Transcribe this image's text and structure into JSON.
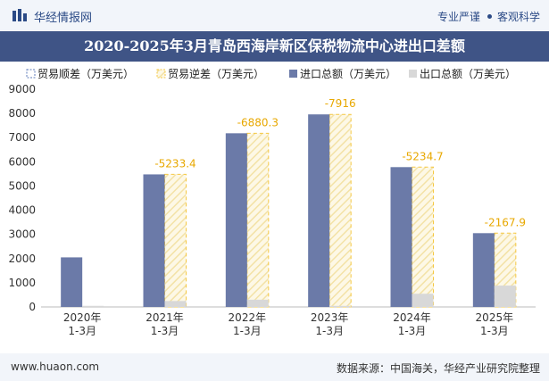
{
  "header": {
    "brand": "华经情报网",
    "slogan_left": "专业严谨",
    "slogan_right": "客观科学",
    "logo_icon": "bar-chart-logo-icon"
  },
  "title": "2020-2025年3月青岛西海岸新区保税物流中心进出口差额",
  "footer": {
    "site": "www.huaon.com",
    "source": "数据来源：中国海关，华经产业研究院整理"
  },
  "colors": {
    "import": "#6b7aa8",
    "export": "#d8d8d8",
    "deficit": "#f5c842",
    "header_bg": "#3f5486"
  },
  "chart_data": {
    "type": "bar",
    "title": "2020-2025年3月青岛西海岸新区保税物流中心进出口差额",
    "categories": [
      "2020年\n1-3月",
      "2021年\n1-3月",
      "2022年\n1-3月",
      "2023年\n1-3月",
      "2024年\n1-3月",
      "2025年\n1-3月"
    ],
    "legend": [
      "贸易顺差（万美元）",
      "贸易逆差（万美元）",
      "进口总额（万美元）",
      "出口总额（万美元）"
    ],
    "series": [
      {
        "name": "进口总额（万美元）",
        "values": [
          2050,
          5480,
          7180,
          7960,
          5780,
          3050
        ]
      },
      {
        "name": "出口总额（万美元）",
        "values": [
          45,
          247,
          300,
          44,
          545,
          882
        ]
      },
      {
        "name": "贸易逆差（万美元）",
        "values": [
          null,
          -5233.4,
          -6880.3,
          -7916,
          -5234.7,
          -2167.9
        ]
      },
      {
        "name": "贸易顺差（万美元）",
        "values": [
          null,
          null,
          null,
          null,
          null,
          null
        ]
      }
    ],
    "data_labels": [
      "",
      "-5233.4",
      "-6880.3",
      "-7916",
      "-5234.7",
      "-2167.9"
    ],
    "yticks": [
      "0",
      "1000",
      "2000",
      "3000",
      "4000",
      "5000",
      "6000",
      "7000",
      "8000",
      "9000"
    ],
    "ylim": [
      0,
      9000
    ],
    "grid": false,
    "legend_position": "top"
  }
}
